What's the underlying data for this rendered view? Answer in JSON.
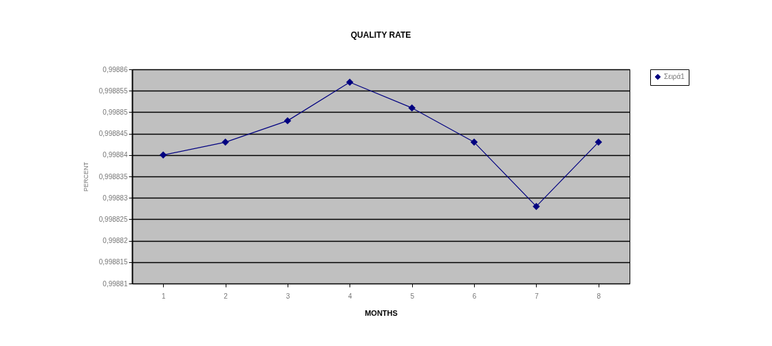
{
  "chart_data": {
    "type": "line",
    "title": "QUALITY RATE",
    "xlabel": "MONTHS",
    "ylabel": "PERCENT",
    "categories": [
      "1",
      "2",
      "3",
      "4",
      "5",
      "6",
      "7",
      "8"
    ],
    "series": [
      {
        "name": "Σειρά1",
        "color": "#000080",
        "values": [
          0.99884,
          0.998843,
          0.998848,
          0.998857,
          0.998851,
          0.998843,
          0.998828,
          0.998843
        ]
      }
    ],
    "ylim": [
      0.99881,
      0.99886
    ],
    "yticks": [
      {
        "value": 0.99881,
        "label": "0,99881"
      },
      {
        "value": 0.998815,
        "label": "0,998815"
      },
      {
        "value": 0.99882,
        "label": "0,99882"
      },
      {
        "value": 0.998825,
        "label": "0,998825"
      },
      {
        "value": 0.99883,
        "label": "0,99883"
      },
      {
        "value": 0.998835,
        "label": "0,998835"
      },
      {
        "value": 0.99884,
        "label": "0,99884"
      },
      {
        "value": 0.998845,
        "label": "0,998845"
      },
      {
        "value": 0.99885,
        "label": "0,99885"
      },
      {
        "value": 0.998855,
        "label": "0,998855"
      },
      {
        "value": 0.99886,
        "label": "0,99886"
      }
    ],
    "grid": "y",
    "legend": "right",
    "marker": "diamond",
    "line_style": "solid"
  }
}
